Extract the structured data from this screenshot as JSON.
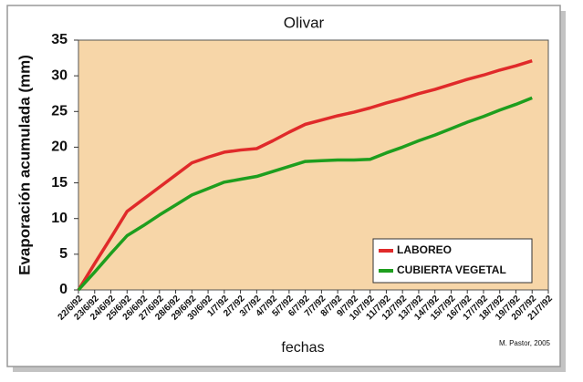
{
  "chart_data": {
    "type": "line",
    "title": "Olivar",
    "y_label": "Evaporación acumulada (mm)",
    "x_label": "fechas",
    "annotation": "M. Pastor, 2005",
    "categories": [
      "22/6/92",
      "23/6/92",
      "24/6/92",
      "25/6/92",
      "26/6/92",
      "27/6/92",
      "28/6/92",
      "29/6/92",
      "30/6/92",
      "1/7/92",
      "2/7/92",
      "3/7/92",
      "4/7/92",
      "5/7/92",
      "6/7/92",
      "7/7/92",
      "8/7/92",
      "9/7/92",
      "10/7/92",
      "11/7/92",
      "12/7/92",
      "13/7/92",
      "14/7/92",
      "15/7/92",
      "16/7/92",
      "17/7/92",
      "18/7/92",
      "19/7/92",
      "20/7/92",
      "21/7/92"
    ],
    "series": [
      {
        "name": "LABOREO",
        "color": "#e02a2a",
        "values": [
          0,
          3.7,
          7.3,
          11,
          12.7,
          14.4,
          16.1,
          17.8,
          18.6,
          19.3,
          19.6,
          19.8,
          20.9,
          22.1,
          23.2,
          23.8,
          24.4,
          24.9,
          25.5,
          26.2,
          26.8,
          27.5,
          28.1,
          28.8,
          29.5,
          30.1,
          30.8,
          31.4,
          32.1,
          null
        ]
      },
      {
        "name": "CUBIERTA VEGETAL",
        "color": "#1e9e1e",
        "values": [
          0,
          2.5,
          5.1,
          7.6,
          9.0,
          10.5,
          11.9,
          13.3,
          14.2,
          15.1,
          15.5,
          15.9,
          16.6,
          17.3,
          18.0,
          18.1,
          18.2,
          18.2,
          18.3,
          19.2,
          20.0,
          20.9,
          21.7,
          22.6,
          23.5,
          24.3,
          25.2,
          26.0,
          26.9,
          null
        ]
      }
    ],
    "ylim": [
      0,
      35
    ],
    "yticks": [
      0,
      5,
      10,
      15,
      20,
      25,
      30,
      35
    ],
    "legend": "lower right",
    "plot_background": "#f7d6a8"
  }
}
